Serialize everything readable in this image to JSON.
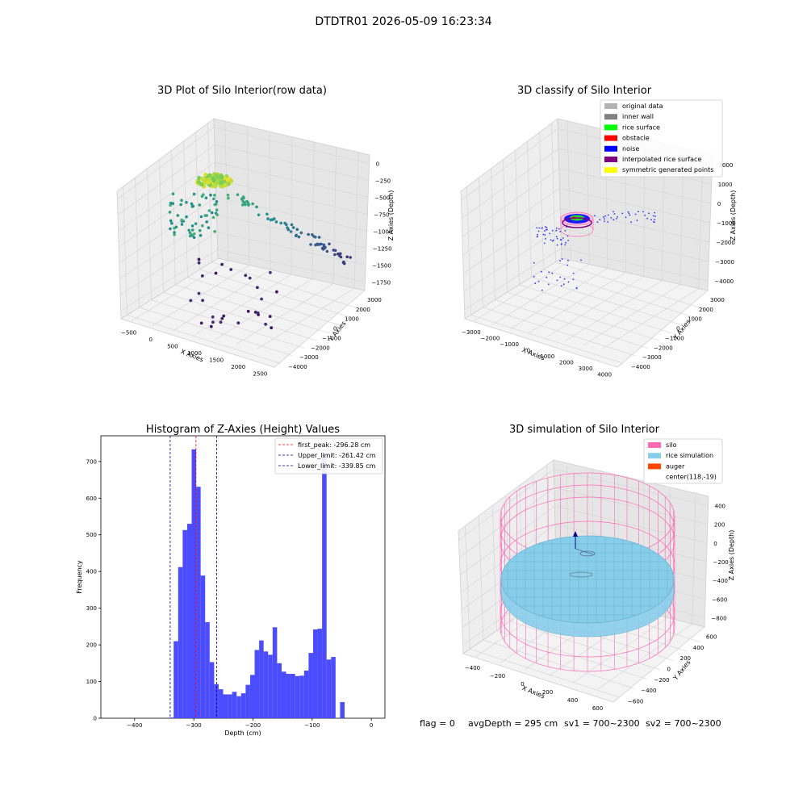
{
  "figure": {
    "suptitle": "DTDTR01 2026-05-09 16:23:34",
    "status": {
      "flag": "flag = 0",
      "avg": "avgDepth = 295 cm",
      "sv1": "sv1 = 700~2300",
      "sv2": "sv2 = 700~2300"
    }
  },
  "colors": {
    "hist_bar": "#4c4cff",
    "peak_line": "#ff0000",
    "limit_line": "#00008b",
    "grid": "#d9d9d9",
    "pane": "#f2f2f2",
    "silo": "#ff69b4",
    "rice": "#87ceeb",
    "auger": "#ff4500"
  },
  "panels": {
    "raw": {
      "title": "3D Plot of Silo Interior(row data)",
      "xlabel": "X Axies",
      "ylabel": "Y Axies",
      "zlabel": "Z Axies (Depth)",
      "xticks": [
        "−500",
        "0",
        "500",
        "1000",
        "1500",
        "2000",
        "2500"
      ],
      "yticks": [
        "−4000",
        "−3000",
        "−2000",
        "−1000",
        "0",
        "1000",
        "2000",
        "3000"
      ],
      "zticks": [
        "0",
        "−250",
        "−500",
        "−750",
        "−1000",
        "−1250",
        "−1500",
        "−1750"
      ]
    },
    "classify": {
      "title": "3D classify of Silo Interior",
      "xlabel": "X Axies",
      "ylabel": "Y Axies",
      "zlabel": "Z Axies (Depth)",
      "xticks": [
        "−3000",
        "−2000",
        "−1000",
        "0",
        "1000",
        "2000",
        "3000",
        "4000"
      ],
      "yticks": [
        "−4000",
        "−3000",
        "−2000",
        "−1000",
        "0",
        "1000",
        "2000",
        "3000"
      ],
      "zticks": [
        "2000",
        "1000",
        "0",
        "−1000",
        "−2000",
        "−3000",
        "−4000"
      ],
      "legend": [
        {
          "label": "original data",
          "color": "#b3b3b3"
        },
        {
          "label": "inner wall",
          "color": "#808080"
        },
        {
          "label": "rice surface",
          "color": "#00ff00"
        },
        {
          "label": "obstacle",
          "color": "#ff0000"
        },
        {
          "label": "noise",
          "color": "#0000ff"
        },
        {
          "label": "interpolated rice surface",
          "color": "#800080"
        },
        {
          "label": "symmetric generated points",
          "color": "#ffff00"
        }
      ]
    },
    "simulation": {
      "title": "3D simulation of Silo Interior",
      "xlabel": "X Axies",
      "ylabel": "Y Axies",
      "zlabel": "Z Axies (Depth)",
      "xticks": [
        "−400",
        "−200",
        "0",
        "200",
        "400",
        "600"
      ],
      "yticks": [
        "−600",
        "−400",
        "−200",
        "0",
        "200",
        "400",
        "600"
      ],
      "zticks": [
        "400",
        "200",
        "0",
        "−200",
        "−400",
        "−600",
        "−800"
      ],
      "legend": [
        {
          "label": "silo",
          "color": "#ff69b4"
        },
        {
          "label": "rice simulation",
          "color": "#87ceeb"
        },
        {
          "label": "auger",
          "color": "#ff4500"
        },
        {
          "label": "center(118,-19)",
          "color": "none"
        }
      ]
    }
  },
  "chart_data": [
    {
      "type": "bar",
      "title": "Histogram of Z-Axies (Height) Values",
      "xlabel": "Depth (cm)",
      "ylabel": "Frequency",
      "xlim": [
        -457,
        23
      ],
      "ylim": [
        0,
        770
      ],
      "xticks": [
        -400,
        -300,
        -200,
        -100,
        0
      ],
      "xtick_labels": [
        "−400",
        "−300",
        "−200",
        "−100",
        "0"
      ],
      "yticks": [
        0,
        100,
        200,
        300,
        400,
        500,
        600,
        700
      ],
      "yticks_labels": [
        "0",
        "100",
        "200",
        "300",
        "400",
        "500",
        "600",
        "700"
      ],
      "bin_start": -341.6,
      "bin_width": 7.6,
      "values": [
        2,
        210,
        412,
        513,
        530,
        733,
        631,
        389,
        262,
        153,
        93,
        79,
        65,
        65,
        72,
        60,
        68,
        91,
        118,
        186,
        212,
        182,
        173,
        248,
        150,
        127,
        121,
        121,
        115,
        116,
        130,
        178,
        242,
        244,
        720,
        160,
        167,
        0,
        44
      ],
      "lines": [
        {
          "label": "first_peak: -296.28 cm",
          "x": -296.28,
          "color": "#ff0000"
        },
        {
          "label": "Upper_limit: -261.42 cm",
          "x": -261.42,
          "color": "#00008b"
        },
        {
          "label": "Lower_limit: -339.85 cm",
          "x": -339.85,
          "color": "#00008b"
        }
      ],
      "legend_position": "upper right"
    }
  ]
}
